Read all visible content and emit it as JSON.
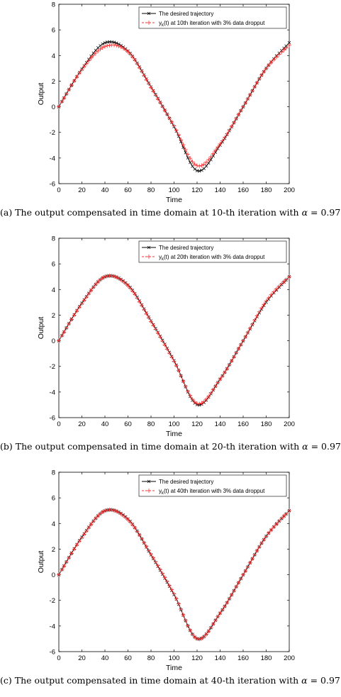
{
  "figure": {
    "captions": [
      {
        "prefix": "(a) The output compensated in time domain at 10-th iteration with ",
        "alpha_symbol": "α",
        "alpha_value": " = 0.97"
      },
      {
        "prefix": "(b) The output compensated in time domain at 20-th iteration with ",
        "alpha_symbol": "α",
        "alpha_value": " = 0.97"
      },
      {
        "prefix": "(c) The output compensated in time domain at 40-th iteration with ",
        "alpha_symbol": "α",
        "alpha_value": " = 0.97"
      }
    ]
  },
  "colors": {
    "desired": "#000000",
    "output": "#ff3333",
    "axes": "#000000"
  },
  "chart_data": [
    {
      "type": "line",
      "xlabel": "Time",
      "ylabel": "Output",
      "xlim": [
        0,
        200
      ],
      "ylim": [
        -6,
        8
      ],
      "xticks": [
        0,
        20,
        40,
        60,
        80,
        100,
        120,
        140,
        160,
        180,
        200
      ],
      "yticks": [
        -6,
        -4,
        -2,
        0,
        2,
        4,
        6,
        8
      ],
      "legend_position": "top-right",
      "grid": false,
      "series": [
        {
          "name": "The desired trajectory",
          "marker": "x",
          "x": [
            0,
            20,
            40,
            60,
            80,
            100,
            120,
            140,
            160,
            180,
            200
          ],
          "y": [
            0,
            2.94,
            4.99,
            4.35,
            1.55,
            -1.55,
            -4.99,
            -3.0,
            0.0,
            3.0,
            5.0
          ]
        },
        {
          "name": "y",
          "name_sub": "k",
          "name_rest": "(t) at 10th iteration with 3% data dropput",
          "marker": "+",
          "x": [
            0,
            20,
            40,
            60,
            80,
            100,
            120,
            140,
            160,
            180,
            200
          ],
          "y": [
            0,
            2.9,
            4.7,
            4.3,
            1.5,
            -1.5,
            -4.6,
            -2.9,
            0.0,
            3.0,
            4.8
          ]
        }
      ]
    },
    {
      "type": "line",
      "xlabel": "Time",
      "ylabel": "Output",
      "xlim": [
        0,
        200
      ],
      "ylim": [
        -6,
        8
      ],
      "xticks": [
        0,
        20,
        40,
        60,
        80,
        100,
        120,
        140,
        160,
        180,
        200
      ],
      "yticks": [
        -6,
        -4,
        -2,
        0,
        2,
        4,
        6,
        8
      ],
      "legend_position": "top-right",
      "grid": false,
      "series": [
        {
          "name": "The desired trajectory",
          "marker": "x",
          "x": [
            0,
            20,
            40,
            60,
            80,
            100,
            120,
            140,
            160,
            180,
            200
          ],
          "y": [
            0,
            2.94,
            4.99,
            4.35,
            1.55,
            -1.55,
            -4.99,
            -3.0,
            0.0,
            3.0,
            5.0
          ]
        },
        {
          "name": "y",
          "name_sub": "k",
          "name_rest": "(t) at 20th iteration with 3% data dropput",
          "marker": "+",
          "x": [
            0,
            20,
            40,
            60,
            80,
            100,
            120,
            140,
            160,
            180,
            200
          ],
          "y": [
            0,
            2.9,
            5.0,
            4.3,
            1.5,
            -1.6,
            -4.9,
            -3.0,
            0.0,
            3.1,
            5.0
          ]
        }
      ]
    },
    {
      "type": "line",
      "xlabel": "Time",
      "ylabel": "Output",
      "xlim": [
        0,
        200
      ],
      "ylim": [
        -6,
        8
      ],
      "xticks": [
        0,
        20,
        40,
        60,
        80,
        100,
        120,
        140,
        160,
        180,
        200
      ],
      "yticks": [
        -6,
        -4,
        -2,
        0,
        2,
        4,
        6,
        8
      ],
      "legend_position": "top-right",
      "grid": false,
      "series": [
        {
          "name": "The desired trajectory",
          "marker": "x",
          "x": [
            0,
            20,
            40,
            60,
            80,
            100,
            120,
            140,
            160,
            180,
            200
          ],
          "y": [
            0,
            2.94,
            4.99,
            4.35,
            1.55,
            -1.55,
            -4.99,
            -3.0,
            0.0,
            3.0,
            5.0
          ]
        },
        {
          "name": "y",
          "name_sub": "k",
          "name_rest": "(t) at 40th iteration with 3% data dropput",
          "marker": "+",
          "x": [
            0,
            20,
            40,
            60,
            80,
            100,
            120,
            140,
            160,
            180,
            200
          ],
          "y": [
            0,
            2.9,
            5.0,
            4.3,
            1.6,
            -1.5,
            -5.0,
            -3.0,
            0.0,
            3.0,
            5.0
          ]
        }
      ]
    }
  ]
}
